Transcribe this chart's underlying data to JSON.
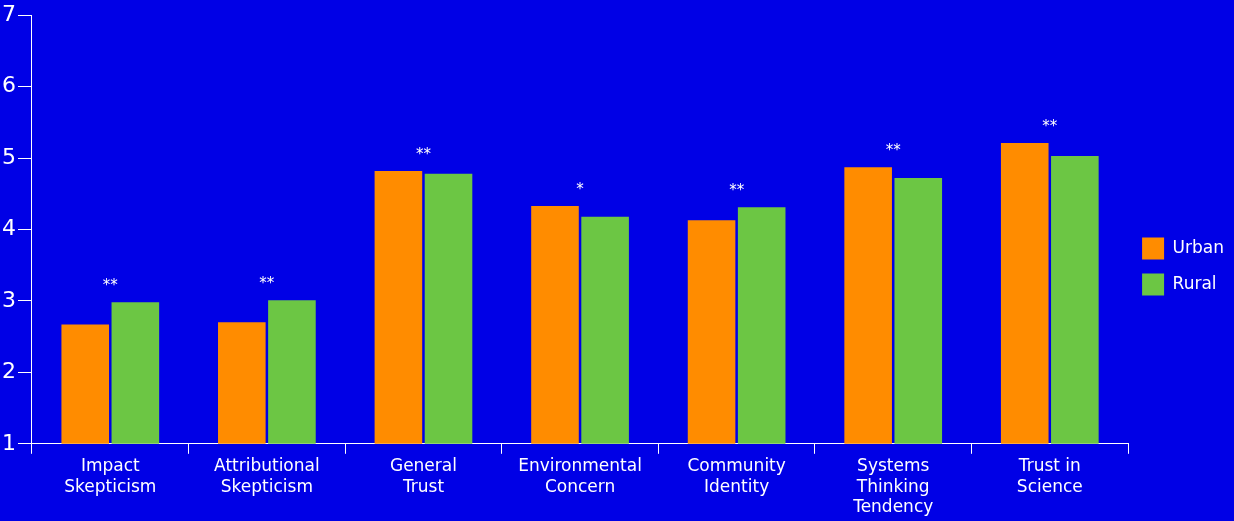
{
  "chart_data": {
    "type": "bar",
    "categories": [
      "Impact Skepticism",
      "Attributional Skepticism",
      "General Trust",
      "Environmental Concern",
      "Community Identity",
      "Systems Thinking Tendency",
      "Trust in Science"
    ],
    "series": [
      {
        "name": "Urban",
        "color": "#ff8c00",
        "values": [
          2.67,
          2.7,
          4.82,
          4.33,
          4.13,
          4.87,
          5.21
        ]
      },
      {
        "name": "Rural",
        "color": "#6cc644",
        "values": [
          2.98,
          3.01,
          4.78,
          4.18,
          4.31,
          4.72,
          5.03
        ]
      }
    ],
    "ylim": [
      1,
      7
    ],
    "yticks": [
      1,
      2,
      3,
      4,
      5,
      6,
      7
    ],
    "grid": false,
    "legend": "right",
    "annotations": [
      "**",
      "**",
      "**",
      "*",
      "**",
      "**",
      "**"
    ]
  }
}
